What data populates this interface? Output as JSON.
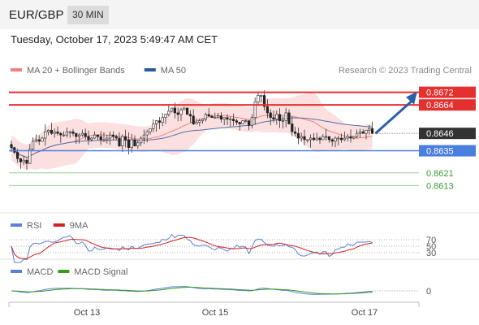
{
  "header": {
    "pair": "EUR/GBP",
    "timeframe": "30 MIN",
    "datetime": "Tuesday, October 17, 2023 5:49:47 AM CET"
  },
  "chart_data": {
    "type": "candlestick",
    "legend": [
      {
        "label": "MA 20 + Bollinger Bands",
        "color": "#f08080"
      },
      {
        "label": "MA 50",
        "color": "#2a5a9a"
      }
    ],
    "credit": "Research © 2023 Trading Central",
    "x_ticks": [
      "Oct 13",
      "Oct 15",
      "Oct 17"
    ],
    "price_levels": [
      {
        "value": 0.8672,
        "label": "0.8672",
        "style": "resistance",
        "color": "#e53030"
      },
      {
        "value": 0.8664,
        "label": "0.8664",
        "style": "resistance",
        "color": "#e53030"
      },
      {
        "value": 0.8646,
        "label": "0.8646",
        "style": "last",
        "color": "#333333"
      },
      {
        "value": 0.8635,
        "label": "0.8635",
        "style": "pivot",
        "color": "#4a7fe0"
      },
      {
        "value": 0.8621,
        "label": "0.8621",
        "style": "target",
        "color": "#3a9a3a"
      },
      {
        "value": 0.8613,
        "label": "0.8613",
        "style": "target",
        "color": "#3a9a3a"
      }
    ],
    "y_range": [
      0.8607,
      0.8679
    ],
    "closes": [
      0.8637,
      0.8634,
      0.863,
      0.8628,
      0.8629,
      0.8627,
      0.8636,
      0.8641,
      0.8642,
      0.8641,
      0.8643,
      0.8647,
      0.8648,
      0.8646,
      0.8647,
      0.8646,
      0.8645,
      0.8645,
      0.8647,
      0.8647,
      0.8646,
      0.8644,
      0.8645,
      0.8646,
      0.8644,
      0.8642,
      0.8643,
      0.8645,
      0.8644,
      0.8642,
      0.8642,
      0.8643,
      0.8645,
      0.8644,
      0.8643,
      0.8638,
      0.8644,
      0.8642,
      0.8637,
      0.8642,
      0.8638,
      0.864,
      0.8643,
      0.8645,
      0.8647,
      0.8649,
      0.8652,
      0.8654,
      0.8653,
      0.8656,
      0.8658,
      0.866,
      0.8662,
      0.8659,
      0.8658,
      0.8661,
      0.8662,
      0.8658,
      0.8657,
      0.8652,
      0.8653,
      0.8654,
      0.8655,
      0.8658,
      0.8657,
      0.8656,
      0.8656,
      0.8657,
      0.8655,
      0.8656,
      0.8655,
      0.8655,
      0.8654,
      0.8653,
      0.8652,
      0.8654,
      0.8654,
      0.8651,
      0.8656,
      0.8666,
      0.867,
      0.867,
      0.8663,
      0.8659,
      0.8656,
      0.8655,
      0.8658,
      0.8654,
      0.8654,
      0.8659,
      0.8652,
      0.8647,
      0.8646,
      0.8643,
      0.8644,
      0.8642,
      0.8642,
      0.8643,
      0.8642,
      0.8643,
      0.8642,
      0.8644,
      0.8644,
      0.8642,
      0.8641,
      0.8643,
      0.8643,
      0.8642,
      0.8643,
      0.8644,
      0.8643,
      0.8644,
      0.8646,
      0.8647,
      0.8646,
      0.8648,
      0.8649,
      0.8646
    ],
    "forecast_arrow": {
      "from": 0.8646,
      "to": 0.8672,
      "color": "#2a5fa8"
    },
    "rsi": {
      "legend": [
        {
          "label": "RSI",
          "color": "#5a7fd8"
        },
        {
          "label": "9MA",
          "color": "#d32020"
        }
      ],
      "levels": [
        "70",
        "50",
        "30"
      ]
    },
    "macd": {
      "legend": [
        {
          "label": "MACD",
          "color": "#5a7fd8"
        },
        {
          "label": "MACD Signal",
          "color": "#3a9a20"
        }
      ],
      "zero_label": "0"
    }
  }
}
